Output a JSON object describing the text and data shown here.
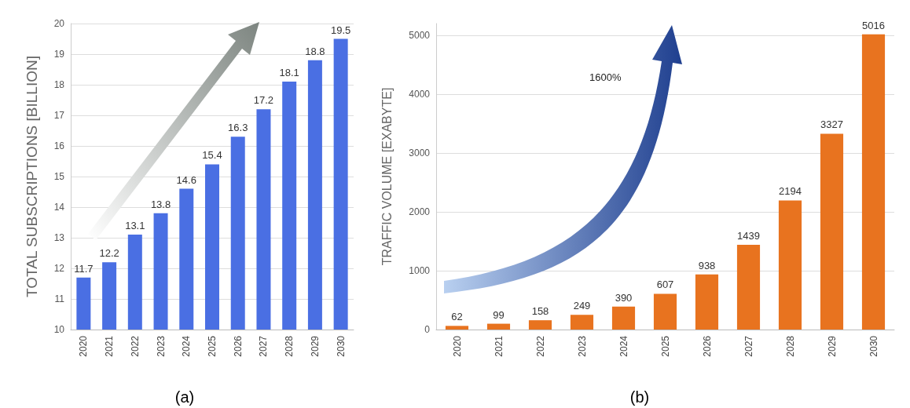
{
  "chart_data": [
    {
      "type": "bar",
      "ylabel": "TOTAL SUBSCRIPTIONS [BILLION]",
      "categories": [
        "2020",
        "2021",
        "2022",
        "2023",
        "2024",
        "2025",
        "2026",
        "2027",
        "2028",
        "2029",
        "2030"
      ],
      "values": [
        11.7,
        12.2,
        13.1,
        13.8,
        14.6,
        15.4,
        16.3,
        17.2,
        18.1,
        18.8,
        19.5
      ],
      "color": "#4a6fe3",
      "ylim": [
        10,
        20
      ],
      "yticks": [
        10,
        11,
        12,
        13,
        14,
        15,
        16,
        17,
        18,
        19,
        20
      ],
      "grid": "y",
      "data_labels": true,
      "annotations": [
        "(a)"
      ]
    },
    {
      "type": "bar",
      "ylabel": "TRAFFIC VOLUME [EXABYTE]",
      "categories": [
        "2020",
        "2021",
        "2022",
        "2023",
        "2024",
        "2025",
        "2026",
        "2027",
        "2028",
        "2029",
        "2030"
      ],
      "values": [
        62,
        99,
        158,
        249,
        390,
        607,
        938,
        1439,
        2194,
        3327,
        5016
      ],
      "color": "#e8731f",
      "ylim": [
        0,
        5200
      ],
      "yticks": [
        0,
        1000,
        2000,
        3000,
        4000,
        5000
      ],
      "grid": "y",
      "data_labels": true,
      "annotations": [
        "1600%",
        "(b)"
      ]
    }
  ]
}
